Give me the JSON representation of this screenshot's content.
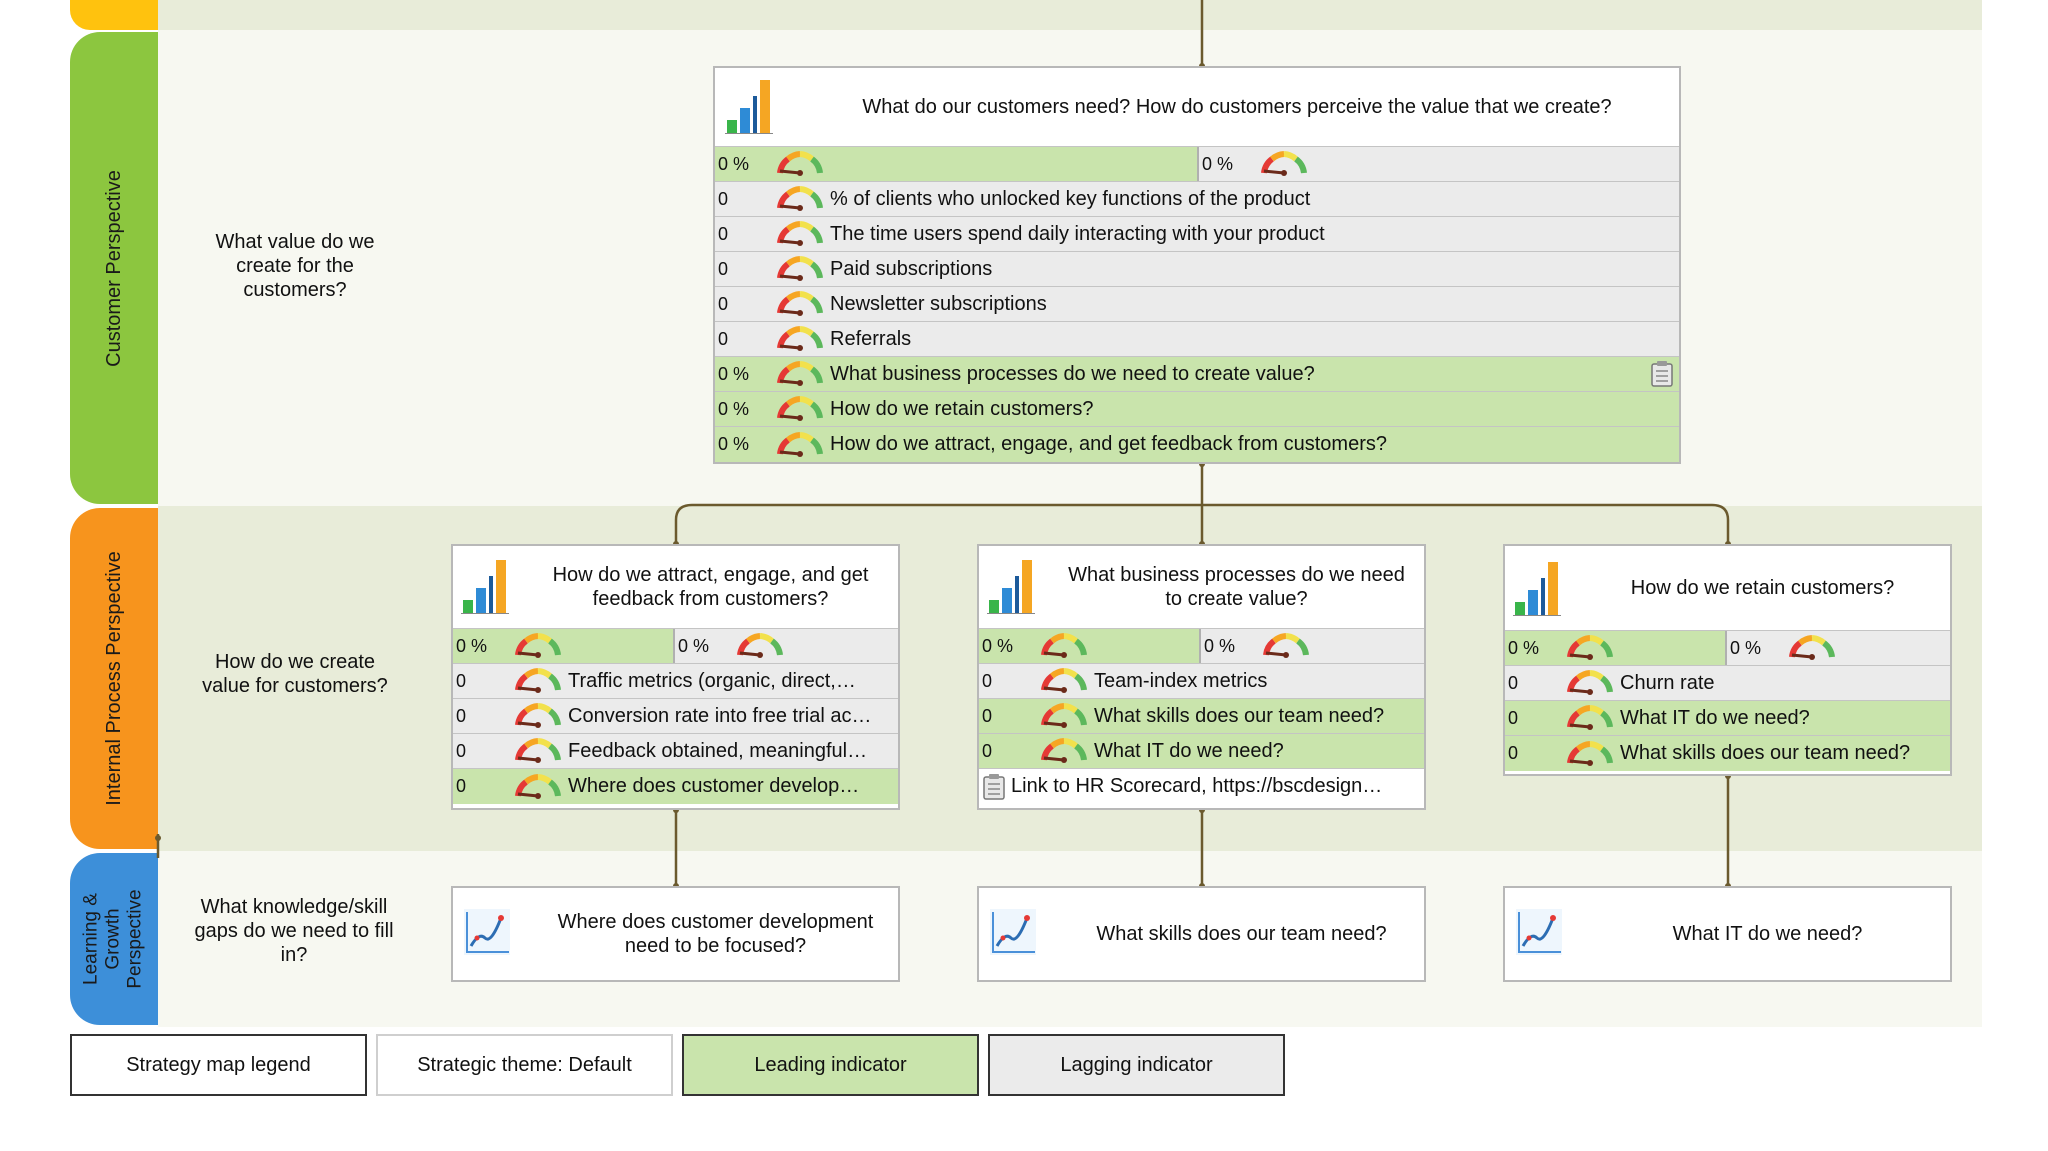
{
  "perspectives": {
    "customer": {
      "label": "Customer Perspective",
      "color": "#8cc63f",
      "question": "What value do we create for the customers?"
    },
    "internal": {
      "label": "Internal Process Perspective",
      "color": "#f7941d",
      "question": "How do we create value for customers?"
    },
    "learning": {
      "label": "Learning & Growth Perspective",
      "line1": "Learning &",
      "line2": "Growth",
      "line3": "Perspective",
      "color": "#3d8fd9",
      "question": "What knowledge/skill gaps do we need to fill in?"
    }
  },
  "top_card": {
    "title": "What do our customers need? How do customers perceive the value that we create?",
    "summary": {
      "left": "0 %",
      "right": "0 %"
    },
    "rows": [
      {
        "value": "0",
        "text": "% of clients who unlocked key functions of the product",
        "kind": "lag"
      },
      {
        "value": "0",
        "text": "The time users spend daily interacting with your product",
        "kind": "lag"
      },
      {
        "value": "0",
        "text": "Paid subscriptions",
        "kind": "lag"
      },
      {
        "value": "0",
        "text": "Newsletter subscriptions",
        "kind": "lag"
      },
      {
        "value": "0",
        "text": "Referrals",
        "kind": "lag"
      },
      {
        "value": "0 %",
        "text": "What business processes do we need to create value?",
        "kind": "lead"
      },
      {
        "value": "0 %",
        "text": "How do we retain customers?",
        "kind": "lead"
      },
      {
        "value": "0 %",
        "text": "How do we attract, engage, and get feedback from customers?",
        "kind": "lead"
      }
    ]
  },
  "mid_cards": [
    {
      "title": "How do we attract, engage, and get feedback from customers?",
      "summary": {
        "left": "0 %",
        "right": "0 %"
      },
      "rows": [
        {
          "value": "0",
          "text": "Traffic metrics (organic, direct,…",
          "kind": "lag"
        },
        {
          "value": "0",
          "text": "Conversion rate into free trial ac…",
          "kind": "lag"
        },
        {
          "value": "0",
          "text": "Feedback obtained, meaningful…",
          "kind": "lag"
        },
        {
          "value": "0",
          "text": "Where does customer develop…",
          "kind": "lead"
        }
      ]
    },
    {
      "title": "What business processes do we need to create value?",
      "summary": {
        "left": "0 %",
        "right": "0 %"
      },
      "rows": [
        {
          "value": "0",
          "text": "Team-index metrics",
          "kind": "lag"
        },
        {
          "value": "0",
          "text": "What skills does our team need?",
          "kind": "lead"
        },
        {
          "value": "0",
          "text": "What IT do we need?",
          "kind": "lead"
        }
      ],
      "link": "Link to HR Scorecard, https://bscdesign…"
    },
    {
      "title": "How do we retain customers?",
      "summary": {
        "left": "0 %",
        "right": "0 %"
      },
      "rows": [
        {
          "value": "0",
          "text": "Churn rate",
          "kind": "lag"
        },
        {
          "value": "0",
          "text": "What IT do we need?",
          "kind": "lead"
        },
        {
          "value": "0",
          "text": "What skills does our team need?",
          "kind": "lead"
        }
      ]
    }
  ],
  "bottom_cards": [
    {
      "title": "Where does customer development need to be focused?"
    },
    {
      "title": "What skills does our team need?"
    },
    {
      "title": "What IT do we need?"
    }
  ],
  "legend": {
    "map": "Strategy map legend",
    "theme": "Strategic theme: Default",
    "leading": "Leading indicator",
    "lagging": "Lagging indicator"
  },
  "colors": {
    "leading": "#c9e4ac",
    "lagging": "#ebebeb",
    "connector": "#6b5a2e"
  }
}
